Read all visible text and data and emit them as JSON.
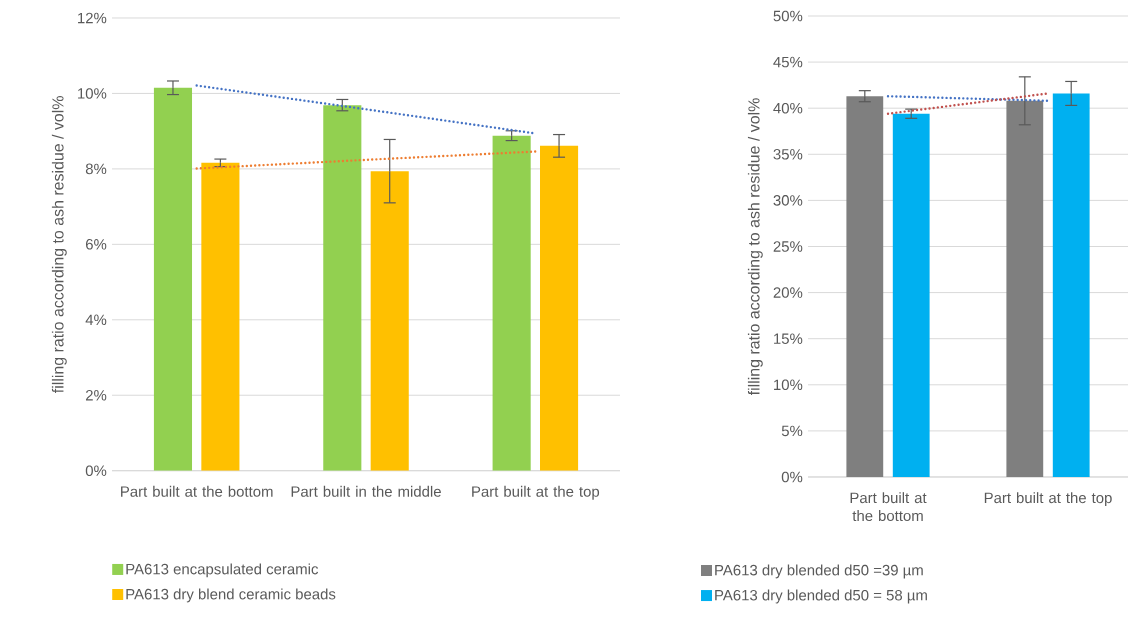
{
  "chart_data": [
    {
      "type": "bar",
      "categories": [
        "Part built at the bottom",
        "Part built in the middle",
        "Part built at the top"
      ],
      "series": [
        {
          "name": "PA613 encapsulated ceramic",
          "color": "#92d050",
          "values": [
            10.15,
            9.69,
            8.88
          ],
          "errors": [
            0.18,
            0.15,
            0.13
          ]
        },
        {
          "name": "PA613 dry blend ceramic beads",
          "color": "#ffc000",
          "values": [
            8.16,
            7.94,
            8.61
          ],
          "errors": [
            0.1,
            0.84,
            0.3
          ]
        },
        {
          "type": "line",
          "color": "#4472c4",
          "values": [
            10.21,
            9.58,
            8.94
          ],
          "line_style": "dotted",
          "marker": "none"
        },
        {
          "type": "line",
          "color": "#ed7d31",
          "values": [
            8.01,
            8.24,
            8.46
          ],
          "line_style": "dotted",
          "marker": "none"
        }
      ],
      "ylabel": "filling ratio according to ash residue / vol%",
      "ylim": [
        0,
        12
      ],
      "yticks": [
        {
          "value": 0,
          "label": "0%"
        },
        {
          "value": 2,
          "label": "2%"
        },
        {
          "value": 4,
          "label": "4%"
        },
        {
          "value": 6,
          "label": "6%"
        },
        {
          "value": 8,
          "label": "8%"
        },
        {
          "value": 10,
          "label": "10%"
        },
        {
          "value": 12,
          "label": "12%"
        }
      ],
      "grid": "y",
      "legend": "bottom"
    },
    {
      "type": "bar",
      "categories": [
        "Part built at the bottom",
        "Part built at the top"
      ],
      "series": [
        {
          "name": "PA613 dry blended d50 =39 µm",
          "color": "#7f7f7f",
          "values": [
            41.3,
            40.8
          ],
          "errors": [
            0.6,
            2.6
          ]
        },
        {
          "name": "PA613 dry blended d50 = 58 µm",
          "color": "#00b0f0",
          "values": [
            39.4,
            41.6
          ],
          "errors": [
            0.5,
            1.3
          ]
        },
        {
          "type": "line",
          "color": "#4472c4",
          "values": [
            41.3,
            40.8
          ],
          "line_style": "dotted",
          "marker": "none"
        },
        {
          "type": "line",
          "color": "#c0504d",
          "values": [
            39.4,
            41.6
          ],
          "line_style": "dotted",
          "marker": "none"
        }
      ],
      "ylabel": "filling ratio according to ash residue / vol%",
      "ylim": [
        0,
        50
      ],
      "yticks": [
        {
          "value": 0,
          "label": "0%"
        },
        {
          "value": 5,
          "label": "5%"
        },
        {
          "value": 10,
          "label": "10%"
        },
        {
          "value": 15,
          "label": "15%"
        },
        {
          "value": 20,
          "label": "20%"
        },
        {
          "value": 25,
          "label": "25%"
        },
        {
          "value": 30,
          "label": "30%"
        },
        {
          "value": 35,
          "label": "35%"
        },
        {
          "value": 40,
          "label": "40%"
        },
        {
          "value": 45,
          "label": "45%"
        },
        {
          "value": 50,
          "label": "50%"
        }
      ],
      "grid": "y",
      "legend": "bottom"
    }
  ]
}
